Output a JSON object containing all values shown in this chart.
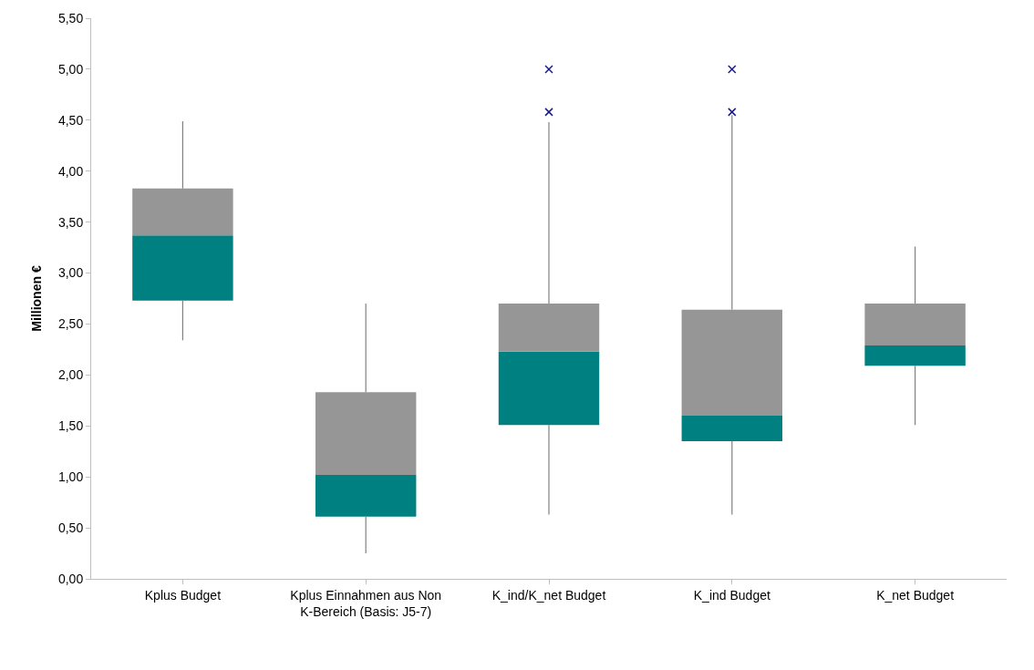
{
  "chart_data": {
    "type": "box",
    "ylabel": "Millionen €",
    "categories": [
      "Kplus Budget",
      "Kplus Einnahmen aus Non K-Bereich (Basis: J5-7)",
      "K_ind/K_net Budget",
      "K_ind Budget",
      "K_net Budget"
    ],
    "colors": [
      [
        "#008080",
        "#969696"
      ],
      [
        "#008080",
        "#969696"
      ],
      [
        "#008080",
        "#969696"
      ],
      [
        "#008080",
        "#969696"
      ],
      [
        "#008080",
        "#969696"
      ]
    ],
    "boxes": [
      {
        "low": 2.34,
        "q1": 2.73,
        "median": 3.37,
        "q3": 3.83,
        "high": 4.49
      },
      {
        "low": 0.25,
        "q1": 0.61,
        "median": 1.02,
        "q3": 1.83,
        "high": 2.7
      },
      {
        "low": 0.63,
        "q1": 1.51,
        "median": 2.23,
        "q3": 2.7,
        "high": 4.48,
        "outliers": [
          5.0,
          4.58
        ]
      },
      {
        "low": 0.63,
        "q1": 1.35,
        "median": 1.6,
        "q3": 2.64,
        "high": 4.55,
        "outliers": [
          5.0,
          4.58
        ]
      },
      {
        "low": 1.51,
        "q1": 2.09,
        "median": 2.29,
        "q3": 2.7,
        "high": 3.26
      }
    ],
    "ylim": [
      0,
      5.5
    ],
    "yticks": [
      {
        "value": 0,
        "label": "0,00"
      },
      {
        "value": 0.5,
        "label": "0,50"
      },
      {
        "value": 1,
        "label": "1,00"
      },
      {
        "value": 1.5,
        "label": "1,50"
      },
      {
        "value": 2,
        "label": "2,00"
      },
      {
        "value": 2.5,
        "label": "2,50"
      },
      {
        "value": 3,
        "label": "3,00"
      },
      {
        "value": 3.5,
        "label": "3,50"
      },
      {
        "value": 4,
        "label": "4,00"
      },
      {
        "value": 4.5,
        "label": "4,50"
      },
      {
        "value": 5,
        "label": "5,00"
      },
      {
        "value": 5.5,
        "label": "5,50"
      }
    ],
    "marker": "cross"
  }
}
